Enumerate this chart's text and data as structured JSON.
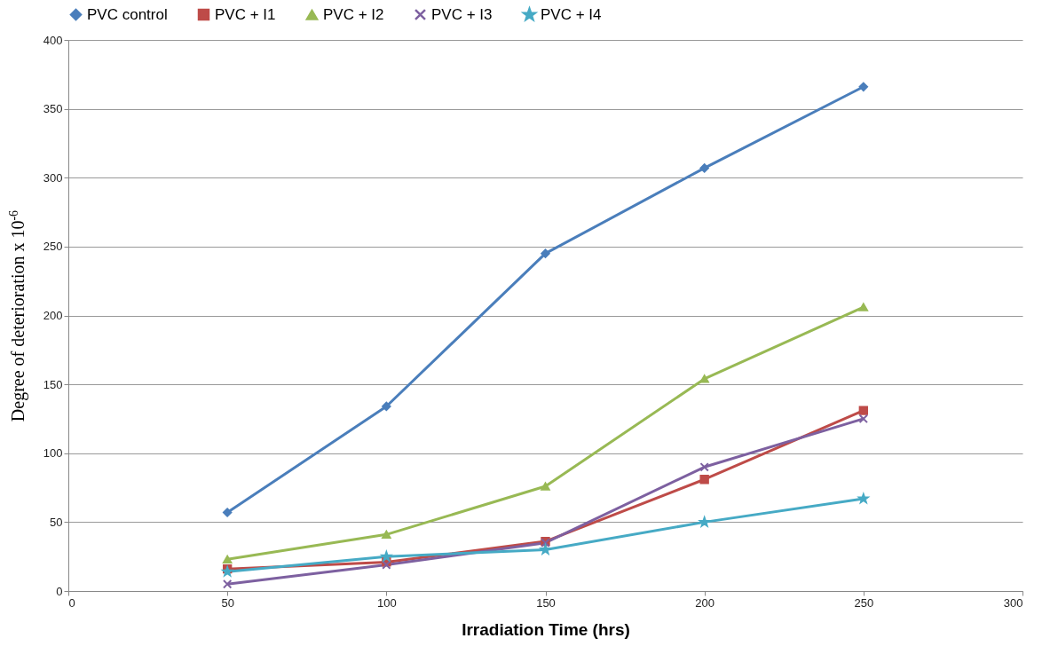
{
  "chart_data": {
    "type": "line",
    "xlabel": "Irradiation Time (hrs)",
    "ylabel": "Degree of deterioration x 10$^{-6}$",
    "x": [
      50,
      100,
      150,
      200,
      250
    ],
    "series": [
      {
        "name": "PVC control",
        "color": "#4a7ebb",
        "marker": "diamond",
        "values": [
          57,
          134,
          245,
          307,
          366
        ]
      },
      {
        "name": "PVC + I1",
        "color": "#be4b48",
        "marker": "square",
        "values": [
          16,
          21,
          36,
          81,
          131
        ]
      },
      {
        "name": "PVC + I2",
        "color": "#98b954",
        "marker": "triangle",
        "values": [
          23,
          41,
          76,
          154,
          206
        ]
      },
      {
        "name": "PVC + I3",
        "color": "#7d60a0",
        "marker": "cross",
        "values": [
          5,
          19,
          35,
          90,
          125
        ]
      },
      {
        "name": "PVC + I4",
        "color": "#46aac5",
        "marker": "star",
        "values": [
          14,
          25,
          30,
          50,
          67
        ]
      }
    ],
    "xlim": [
      0,
      300
    ],
    "xticks": [
      0,
      50,
      100,
      150,
      200,
      250,
      300
    ],
    "ylim": [
      0,
      400
    ],
    "yticks": [
      0,
      50,
      100,
      150,
      200,
      250,
      300,
      350,
      400
    ],
    "grid": "y",
    "legend": "top"
  }
}
